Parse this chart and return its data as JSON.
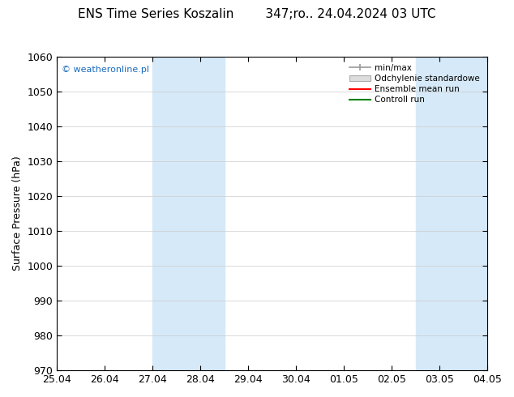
{
  "title": "ENS Time Series Koszalin        347;ro.. 24.04.2024 03 UTC",
  "ylabel": "Surface Pressure (hPa)",
  "ylim": [
    970,
    1060
  ],
  "yticks": [
    970,
    980,
    990,
    1000,
    1010,
    1020,
    1030,
    1040,
    1050,
    1060
  ],
  "xtick_labels": [
    "25.04",
    "26.04",
    "27.04",
    "28.04",
    "29.04",
    "30.04",
    "01.05",
    "02.05",
    "03.05",
    "04.05"
  ],
  "watermark": "© weatheronline.pl",
  "legend_entries": [
    {
      "label": "min/max",
      "color": "#999999",
      "style": "line_with_caps"
    },
    {
      "label": "Odchylenie standardowe",
      "color": "#dddddd",
      "style": "filled_bar"
    },
    {
      "label": "Ensemble mean run",
      "color": "red",
      "style": "line"
    },
    {
      "label": "Controll run",
      "color": "green",
      "style": "line"
    }
  ],
  "background_color": "#ffffff",
  "plot_bg_color": "#ffffff",
  "shading_color": "#d6e9f8",
  "border_color": "#000000",
  "title_fontsize": 11,
  "tick_fontsize": 9,
  "ylabel_fontsize": 9,
  "watermark_fontsize": 8,
  "xlim": [
    0,
    9
  ],
  "band1_start": 2.0,
  "band1_end": 3.5,
  "band2_start": 7.5,
  "band2_end": 9.0
}
